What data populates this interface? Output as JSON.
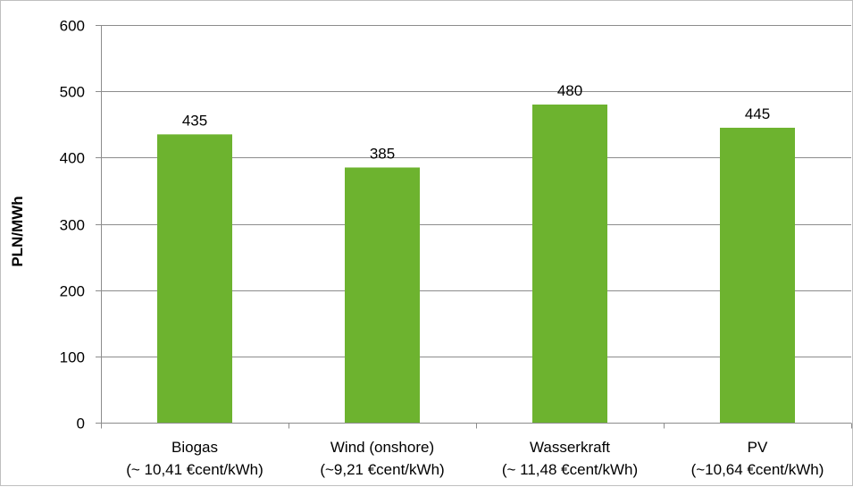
{
  "chart_data": {
    "type": "bar",
    "title": "",
    "xlabel": "",
    "ylabel": "PLN/MWh",
    "ylim": [
      0,
      600
    ],
    "yticks": [
      0,
      100,
      200,
      300,
      400,
      500,
      600
    ],
    "grid": true,
    "legend": "none",
    "bar_color": "#6db32f",
    "categories": [
      [
        "Biogas",
        "(~ 10,41 €cent/kWh)"
      ],
      [
        "Wind (onshore)",
        "(~9,21 €cent/kWh)"
      ],
      [
        "Wasserkraft",
        "(~ 11,48 €cent/kWh)"
      ],
      [
        "PV",
        "(~10,64 €cent/kWh)"
      ]
    ],
    "values": [
      435,
      385,
      480,
      445
    ]
  }
}
